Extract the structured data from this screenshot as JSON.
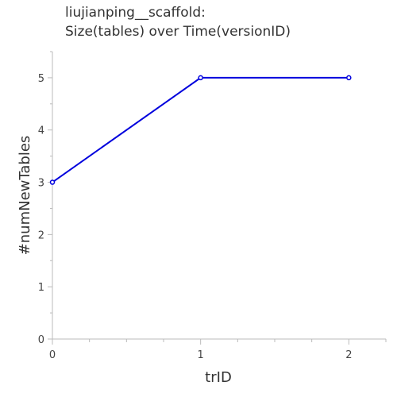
{
  "title_line1": "liujianping__scaffold:",
  "title_line2": "Size(tables) over Time(versionID)",
  "chart_data": {
    "type": "line",
    "title": "liujianping__scaffold: Size(tables) over Time(versionID)",
    "xlabel": "trID",
    "ylabel": "#numNewTables",
    "x": [
      0,
      1,
      2
    ],
    "series": [
      {
        "values": [
          3,
          5,
          5
        ],
        "color": "#0000dd"
      }
    ],
    "xlim": [
      0,
      2.25
    ],
    "ylim": [
      0,
      5.5
    ],
    "x_ticks": [
      "0",
      "1",
      "2"
    ],
    "y_ticks": [
      "0",
      "1",
      "2",
      "3",
      "4",
      "5"
    ],
    "grid": false,
    "legend": "none"
  }
}
